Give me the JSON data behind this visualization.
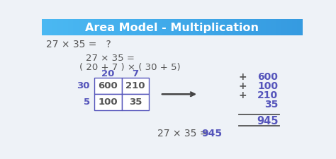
{
  "title": "Area Model - Multiplication",
  "title_bg_left": "#4db8f0",
  "title_bg_right": "#3aa0e0",
  "title_color": "#ffffff",
  "bg_color": "#eef2f7",
  "purple": "#5555bb",
  "dark_gray": "#555555",
  "cell_bg": "#ffffff",
  "question_text": "27 × 35 =   ?",
  "eq1": "27 × 35 =",
  "eq2": "( 20 + 7 ) × ( 30 + 5)",
  "col_labels": [
    "20",
    "7"
  ],
  "row_labels": [
    "30",
    "5"
  ],
  "cells": [
    [
      "600",
      "210"
    ],
    [
      "100",
      "35"
    ]
  ],
  "plus_signs": [
    "+",
    "+",
    "+",
    ""
  ],
  "add_nums": [
    "600",
    "100",
    "210",
    "35"
  ],
  "result": "945",
  "final_eq_gray": "27 × 35 = ",
  "final_val": "945"
}
